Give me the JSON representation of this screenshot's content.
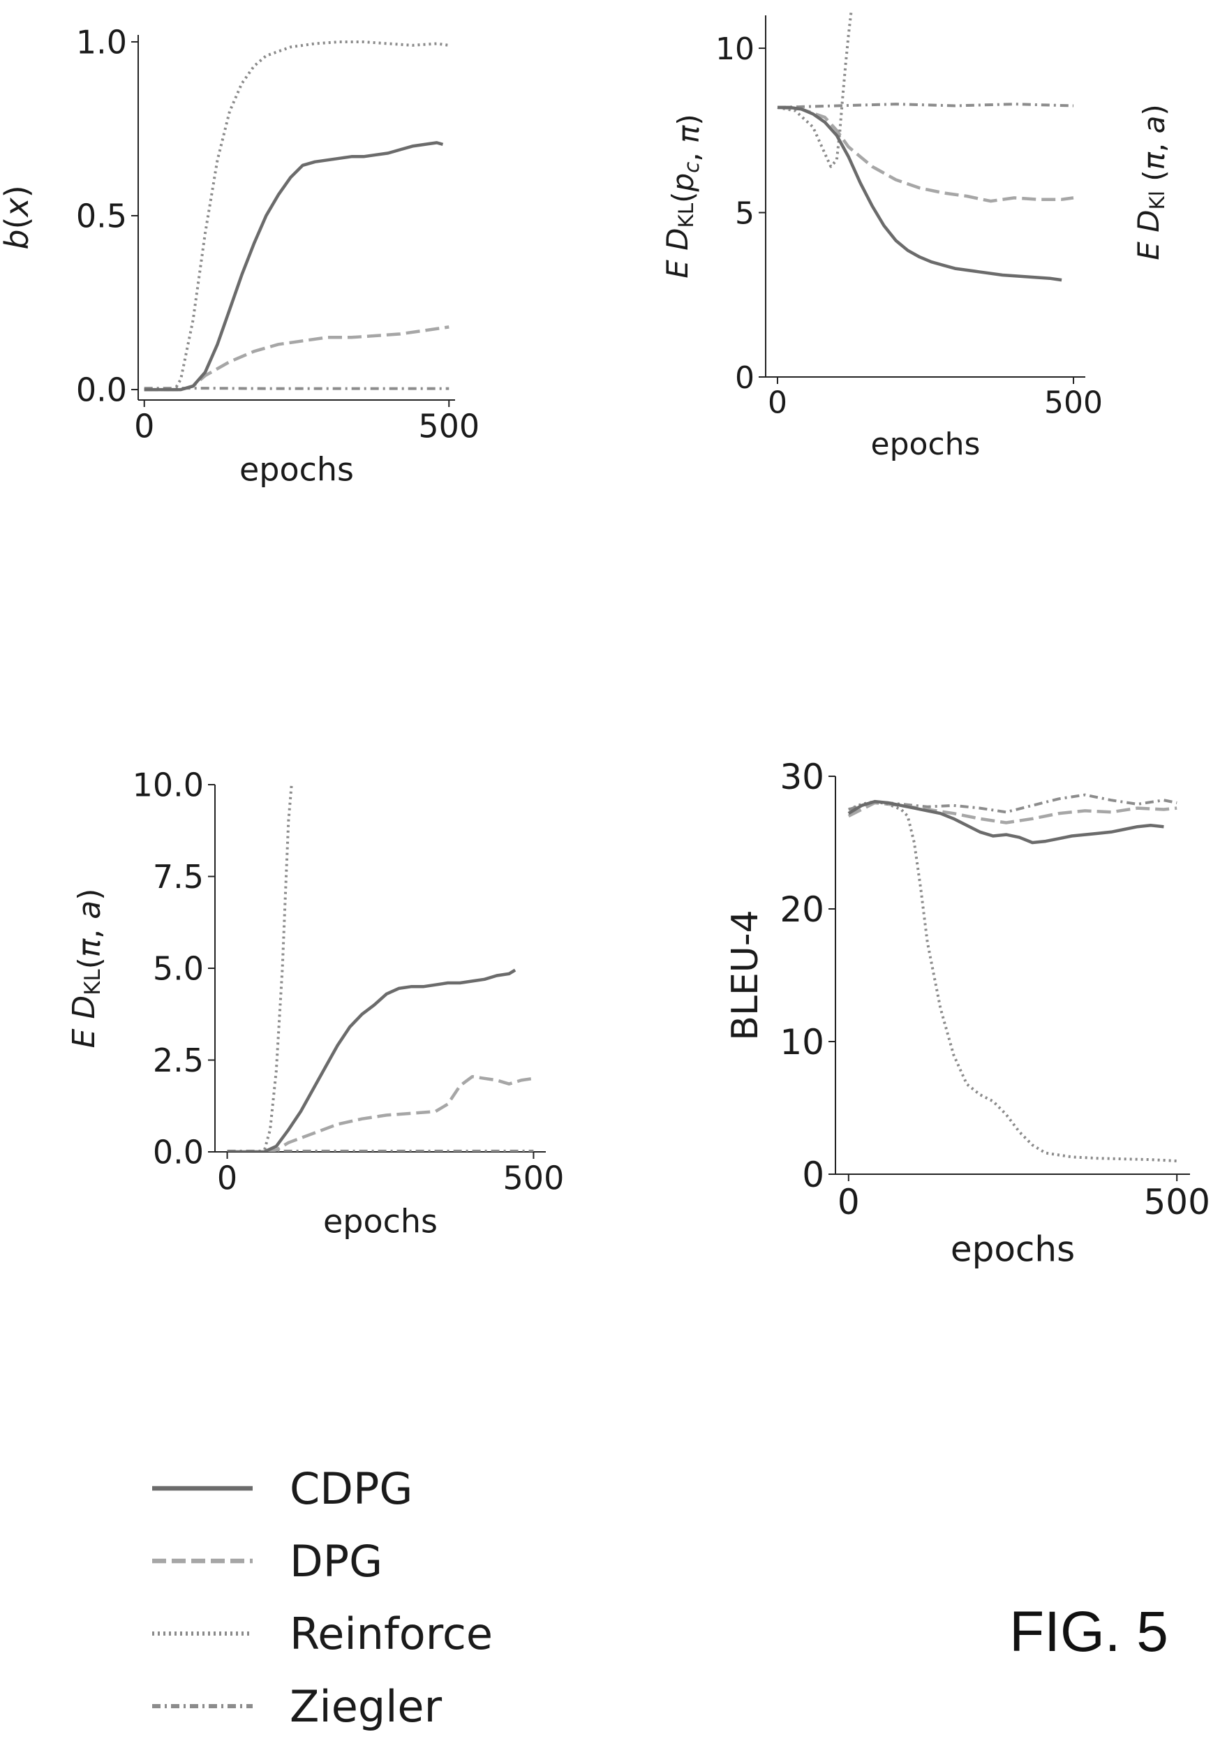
{
  "figure_label": "FIG. 5",
  "series_styles": [
    {
      "name": "CDPG",
      "color": "#6b6b6b",
      "dash": "",
      "width": 4.5
    },
    {
      "name": "DPG",
      "color": "#a6a6a6",
      "dash": "20 8",
      "width": 4.5
    },
    {
      "name": "Reinforce",
      "color": "#8a8a8a",
      "dash": "3 5",
      "width": 4.0
    },
    {
      "name": "Ziegler",
      "color": "#8c8c8c",
      "dash": "12 6 3 6",
      "width": 4.0
    }
  ],
  "legend": {
    "entries": [
      "CDPG",
      "DPG",
      "Reinforce",
      "Ziegler"
    ]
  },
  "chart_data": [
    {
      "type": "line",
      "xlabel": "epochs",
      "ylabel": "b(x)",
      "ylabel_parts": [
        {
          "t": "b",
          "i": true
        },
        {
          "t": "(",
          "i": false
        },
        {
          "t": "x",
          "i": true
        },
        {
          "t": ")",
          "i": false
        }
      ],
      "xlim": [
        -10,
        510
      ],
      "ylim": [
        -0.03,
        1.02
      ],
      "xticks": [
        0,
        500
      ],
      "xtick_labels": [
        "0",
        "500"
      ],
      "yticks": [
        0,
        0.5,
        1.0
      ],
      "ytick_labels": [
        "0.0",
        "0.5",
        "1.0"
      ],
      "series": [
        {
          "name": "CDPG",
          "x": [
            0,
            60,
            80,
            100,
            120,
            140,
            160,
            180,
            200,
            220,
            240,
            260,
            280,
            300,
            320,
            340,
            360,
            380,
            400,
            420,
            440,
            460,
            480,
            490
          ],
          "y": [
            0,
            0,
            0.01,
            0.05,
            0.13,
            0.23,
            0.33,
            0.42,
            0.5,
            0.56,
            0.61,
            0.645,
            0.655,
            0.66,
            0.665,
            0.67,
            0.67,
            0.675,
            0.68,
            0.69,
            0.7,
            0.705,
            0.71,
            0.705
          ]
        },
        {
          "name": "DPG",
          "x": [
            0,
            60,
            80,
            100,
            140,
            180,
            220,
            260,
            300,
            340,
            380,
            420,
            460,
            500
          ],
          "y": [
            0,
            0,
            0.01,
            0.04,
            0.08,
            0.11,
            0.13,
            0.14,
            0.15,
            0.15,
            0.155,
            0.16,
            0.17,
            0.18
          ]
        },
        {
          "name": "Reinforce",
          "x": [
            0,
            50,
            60,
            80,
            100,
            120,
            140,
            160,
            180,
            200,
            240,
            280,
            320,
            360,
            400,
            440,
            480,
            500
          ],
          "y": [
            0,
            0,
            0.03,
            0.2,
            0.45,
            0.66,
            0.8,
            0.88,
            0.93,
            0.96,
            0.985,
            0.995,
            1.0,
            1.0,
            0.995,
            0.99,
            0.995,
            0.99
          ]
        },
        {
          "name": "Ziegler",
          "x": [
            0,
            100,
            200,
            300,
            400,
            500
          ],
          "y": [
            0.004,
            0.004,
            0.003,
            0.003,
            0.003,
            0.003
          ]
        }
      ]
    },
    {
      "type": "line",
      "xlabel": "epochs",
      "ylabel": "E DKL(pc, π)",
      "ylabel_parts": [
        {
          "t": "E D",
          "i": true
        },
        {
          "t": "KL",
          "i": false,
          "sub": true
        },
        {
          "t": "(",
          "i": false
        },
        {
          "t": "p",
          "i": true
        },
        {
          "t": "c",
          "i": true,
          "sub": true
        },
        {
          "t": ", ",
          "i": false
        },
        {
          "t": "π",
          "i": true
        },
        {
          "t": ")",
          "i": false
        }
      ],
      "secondary_ylabel": "E DKl (π, a)",
      "secondary_ylabel_parts": [
        {
          "t": "E D",
          "i": true
        },
        {
          "t": "Kl",
          "i": false,
          "sub": true
        },
        {
          "t": " (",
          "i": false
        },
        {
          "t": "π",
          "i": true
        },
        {
          "t": ", ",
          "i": false
        },
        {
          "t": "a",
          "i": true
        },
        {
          "t": ")",
          "i": false
        }
      ],
      "xlim": [
        -20,
        520
      ],
      "ylim": [
        0,
        11
      ],
      "xticks": [
        0,
        500
      ],
      "xtick_labels": [
        "0",
        "500"
      ],
      "yticks": [
        0,
        5,
        10
      ],
      "ytick_labels": [
        "0",
        "5",
        "10"
      ],
      "series": [
        {
          "name": "CDPG",
          "x": [
            0,
            20,
            40,
            60,
            80,
            100,
            120,
            140,
            160,
            180,
            200,
            220,
            240,
            260,
            280,
            300,
            340,
            380,
            420,
            460,
            480
          ],
          "y": [
            8.2,
            8.2,
            8.15,
            8.0,
            7.75,
            7.35,
            6.7,
            5.9,
            5.2,
            4.6,
            4.15,
            3.85,
            3.65,
            3.5,
            3.4,
            3.3,
            3.2,
            3.1,
            3.05,
            3.0,
            2.95
          ]
        },
        {
          "name": "DPG",
          "x": [
            0,
            40,
            80,
            100,
            120,
            160,
            200,
            240,
            280,
            320,
            360,
            400,
            440,
            480,
            500
          ],
          "y": [
            8.2,
            8.15,
            7.9,
            7.5,
            7.0,
            6.4,
            6.0,
            5.75,
            5.6,
            5.5,
            5.35,
            5.45,
            5.4,
            5.4,
            5.45
          ]
        },
        {
          "name": "Reinforce",
          "x": [
            0,
            30,
            60,
            80,
            90,
            100,
            105,
            110,
            115,
            120,
            125
          ],
          "y": [
            8.2,
            8.1,
            7.6,
            6.8,
            6.4,
            6.6,
            7.4,
            8.5,
            9.5,
            10.4,
            11.2
          ]
        },
        {
          "name": "Ziegler",
          "x": [
            0,
            100,
            200,
            300,
            400,
            500
          ],
          "y": [
            8.2,
            8.25,
            8.3,
            8.25,
            8.3,
            8.25
          ]
        }
      ]
    },
    {
      "type": "line",
      "xlabel": "epochs",
      "ylabel": "E DKL(π, a)",
      "ylabel_parts": [
        {
          "t": "E D",
          "i": true
        },
        {
          "t": "KL",
          "i": false,
          "sub": true
        },
        {
          "t": "(",
          "i": false
        },
        {
          "t": "π",
          "i": true
        },
        {
          "t": ", ",
          "i": false
        },
        {
          "t": "a",
          "i": true
        },
        {
          "t": ")",
          "i": false
        }
      ],
      "xlim": [
        -20,
        520
      ],
      "ylim": [
        0,
        10
      ],
      "xticks": [
        0,
        500
      ],
      "xtick_labels": [
        "0",
        "500"
      ],
      "yticks": [
        0,
        2.5,
        5.0,
        7.5,
        10.0
      ],
      "ytick_labels": [
        "0.0",
        "2.5",
        "5.0",
        "7.5",
        "10.0"
      ],
      "series": [
        {
          "name": "CDPG",
          "x": [
            0,
            60,
            80,
            100,
            120,
            140,
            160,
            180,
            200,
            220,
            240,
            260,
            280,
            300,
            320,
            340,
            360,
            380,
            400,
            420,
            440,
            460,
            470
          ],
          "y": [
            0,
            0,
            0.15,
            0.6,
            1.1,
            1.7,
            2.3,
            2.9,
            3.4,
            3.75,
            4.0,
            4.3,
            4.45,
            4.5,
            4.5,
            4.55,
            4.6,
            4.6,
            4.65,
            4.7,
            4.8,
            4.85,
            4.95
          ]
        },
        {
          "name": "DPG",
          "x": [
            0,
            60,
            80,
            100,
            140,
            180,
            220,
            260,
            300,
            340,
            360,
            380,
            400,
            420,
            440,
            460,
            480,
            500
          ],
          "y": [
            0,
            0,
            0.05,
            0.25,
            0.5,
            0.75,
            0.9,
            1.0,
            1.05,
            1.1,
            1.3,
            1.8,
            2.05,
            2.0,
            1.95,
            1.85,
            1.95,
            2.0
          ]
        },
        {
          "name": "Reinforce",
          "x": [
            0,
            60,
            70,
            80,
            90,
            95,
            100,
            105
          ],
          "y": [
            0,
            0,
            0.6,
            2.2,
            5.0,
            7.0,
            9.0,
            10.0
          ]
        },
        {
          "name": "Ziegler",
          "x": [
            0,
            100,
            200,
            300,
            400,
            500
          ],
          "y": [
            0.02,
            0.02,
            0.02,
            0.02,
            0.02,
            0.02
          ]
        }
      ]
    },
    {
      "type": "line",
      "xlabel": "epochs",
      "ylabel": "BLEU-4",
      "xlim": [
        -20,
        520
      ],
      "ylim": [
        0,
        30
      ],
      "xticks": [
        0,
        500
      ],
      "xtick_labels": [
        "0",
        "500"
      ],
      "yticks": [
        0,
        10,
        20,
        30
      ],
      "ytick_labels": [
        "0",
        "10",
        "20",
        "30"
      ],
      "series": [
        {
          "name": "CDPG",
          "x": [
            0,
            20,
            40,
            60,
            80,
            100,
            120,
            140,
            160,
            180,
            200,
            220,
            240,
            260,
            280,
            300,
            320,
            340,
            360,
            380,
            400,
            420,
            440,
            460,
            480
          ],
          "y": [
            27.2,
            27.8,
            28.1,
            28.0,
            27.8,
            27.6,
            27.4,
            27.2,
            26.8,
            26.3,
            25.8,
            25.5,
            25.6,
            25.4,
            25.0,
            25.1,
            25.3,
            25.5,
            25.6,
            25.7,
            25.8,
            26.0,
            26.2,
            26.3,
            26.2
          ]
        },
        {
          "name": "DPG",
          "x": [
            0,
            40,
            80,
            120,
            160,
            200,
            240,
            280,
            320,
            360,
            400,
            440,
            480,
            500
          ],
          "y": [
            27.0,
            28.0,
            27.8,
            27.5,
            27.2,
            26.8,
            26.5,
            26.8,
            27.2,
            27.4,
            27.3,
            27.6,
            27.5,
            27.6
          ]
        },
        {
          "name": "Reinforce",
          "x": [
            0,
            20,
            40,
            60,
            80,
            90,
            100,
            110,
            120,
            140,
            160,
            180,
            200,
            220,
            240,
            260,
            280,
            300,
            340,
            380,
            420,
            460,
            500
          ],
          "y": [
            27.5,
            27.9,
            28.1,
            27.9,
            27.5,
            27.0,
            25.0,
            21.5,
            17.5,
            12.5,
            9.0,
            6.8,
            6.0,
            5.5,
            4.5,
            3.2,
            2.2,
            1.6,
            1.3,
            1.2,
            1.15,
            1.1,
            1.0
          ]
        },
        {
          "name": "Ziegler",
          "x": [
            0,
            40,
            80,
            120,
            160,
            200,
            240,
            280,
            320,
            360,
            400,
            440,
            480,
            500
          ],
          "y": [
            27.5,
            28.1,
            27.9,
            27.7,
            27.8,
            27.6,
            27.3,
            27.8,
            28.3,
            28.6,
            28.2,
            27.9,
            28.2,
            28.0
          ]
        }
      ]
    }
  ]
}
